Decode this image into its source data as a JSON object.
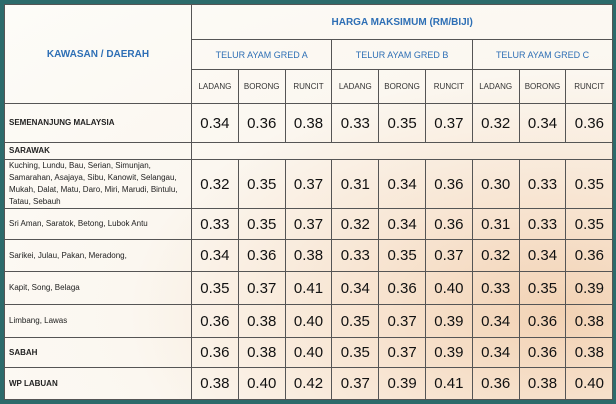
{
  "header": {
    "title": "HARGA MAKSIMUM (RM/BIJI)",
    "region": "KAWASAN / DAERAH",
    "grades": [
      "TELUR AYAM GRED A",
      "TELUR AYAM GRED B",
      "TELUR AYAM GRED C"
    ],
    "sub": [
      "LADANG",
      "BORONG",
      "RUNCIT",
      "LADANG",
      "BORONG",
      "RUNCIT",
      "LADANG",
      "BORONG",
      "RUNCIT"
    ]
  },
  "rows": [
    {
      "name": "SEMENANJUNG MALAYSIA",
      "values": [
        "0.34",
        "0.36",
        "0.38",
        "0.33",
        "0.35",
        "0.37",
        "0.32",
        "0.34",
        "0.36"
      ]
    },
    {
      "name": "SARAWAK"
    },
    {
      "name": "Kuching, Lundu, Bau, Serian, Simunjan, Samarahan, Asajaya, Sibu, Kanowit, Selangau, Mukah, Dalat, Matu, Daro, Miri, Marudi, Bintulu, Tatau, Sebauh",
      "values": [
        "0.32",
        "0.35",
        "0.37",
        "0.31",
        "0.34",
        "0.36",
        "0.30",
        "0.33",
        "0.35"
      ]
    },
    {
      "name": "Sri Aman, Saratok, Betong, Lubok Antu",
      "values": [
        "0.33",
        "0.35",
        "0.37",
        "0.32",
        "0.34",
        "0.36",
        "0.31",
        "0.33",
        "0.35"
      ]
    },
    {
      "name": "Sarikei, Julau, Pakan, Meradong,",
      "values": [
        "0.34",
        "0.36",
        "0.38",
        "0.33",
        "0.35",
        "0.37",
        "0.32",
        "0.34",
        "0.36"
      ]
    },
    {
      "name": "Kapit, Song, Belaga",
      "values": [
        "0.35",
        "0.37",
        "0.41",
        "0.34",
        "0.36",
        "0.40",
        "0.33",
        "0.35",
        "0.39"
      ]
    },
    {
      "name": "Limbang, Lawas",
      "values": [
        "0.36",
        "0.38",
        "0.40",
        "0.35",
        "0.37",
        "0.39",
        "0.34",
        "0.36",
        "0.38"
      ]
    },
    {
      "name": "SABAH",
      "values": [
        "0.36",
        "0.38",
        "0.40",
        "0.35",
        "0.37",
        "0.39",
        "0.34",
        "0.36",
        "0.38"
      ]
    },
    {
      "name": "WP LABUAN",
      "values": [
        "0.38",
        "0.40",
        "0.42",
        "0.37",
        "0.39",
        "0.41",
        "0.36",
        "0.38",
        "0.40"
      ]
    }
  ]
}
